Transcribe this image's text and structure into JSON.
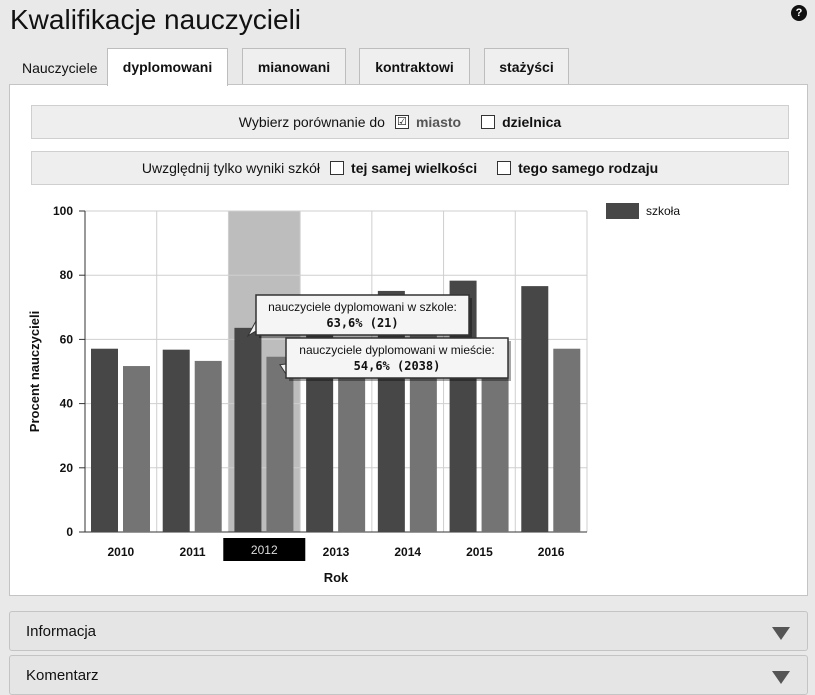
{
  "page": {
    "title": "Kwalifikacje nauczycieli",
    "help": "?"
  },
  "tabs": {
    "label": "Nauczyciele",
    "items": [
      "dyplomowani",
      "mianowani",
      "kontraktowi",
      "stażyści"
    ],
    "active": 0
  },
  "filters": {
    "compare": {
      "label": "Wybierz porównanie do",
      "options": [
        {
          "label": "miasto",
          "checked": true
        },
        {
          "label": "dzielnica",
          "checked": false
        }
      ]
    },
    "include": {
      "label": "Uwzględnij tylko wyniki szkół",
      "options": [
        {
          "label": "tej samej wielkości",
          "checked": false
        },
        {
          "label": "tego samego rodzaju",
          "checked": false
        }
      ]
    }
  },
  "chart_data": {
    "type": "bar",
    "categories": [
      "2010",
      "2011",
      "2012",
      "2013",
      "2014",
      "2015",
      "2016"
    ],
    "series": [
      {
        "name": "szkoła",
        "values": [
          57.1,
          56.8,
          63.6,
          67.6,
          75.1,
          78.3,
          76.6
        ],
        "color": "#474747"
      },
      {
        "values": [
          51.7,
          53.3,
          54.6,
          57.1,
          61.4,
          60.0,
          57.1
        ],
        "color": "#747474"
      }
    ],
    "xlabel": "Rok",
    "ylabel": "Procent nauczycieli",
    "ylim": [
      0,
      100
    ],
    "yticks": [
      0,
      20,
      40,
      60,
      80,
      100
    ],
    "grid": true,
    "legend_position": "top-right",
    "highlighted_category": "2012",
    "tooltips": [
      {
        "title": "nauczyciele dyplomowani w szkole:",
        "value": "63,6% (21)"
      },
      {
        "title": "nauczyciele dyplomowani w mieście:",
        "value": "54,6% (2038)"
      }
    ]
  },
  "sections": [
    "Informacja",
    "Komentarz"
  ]
}
